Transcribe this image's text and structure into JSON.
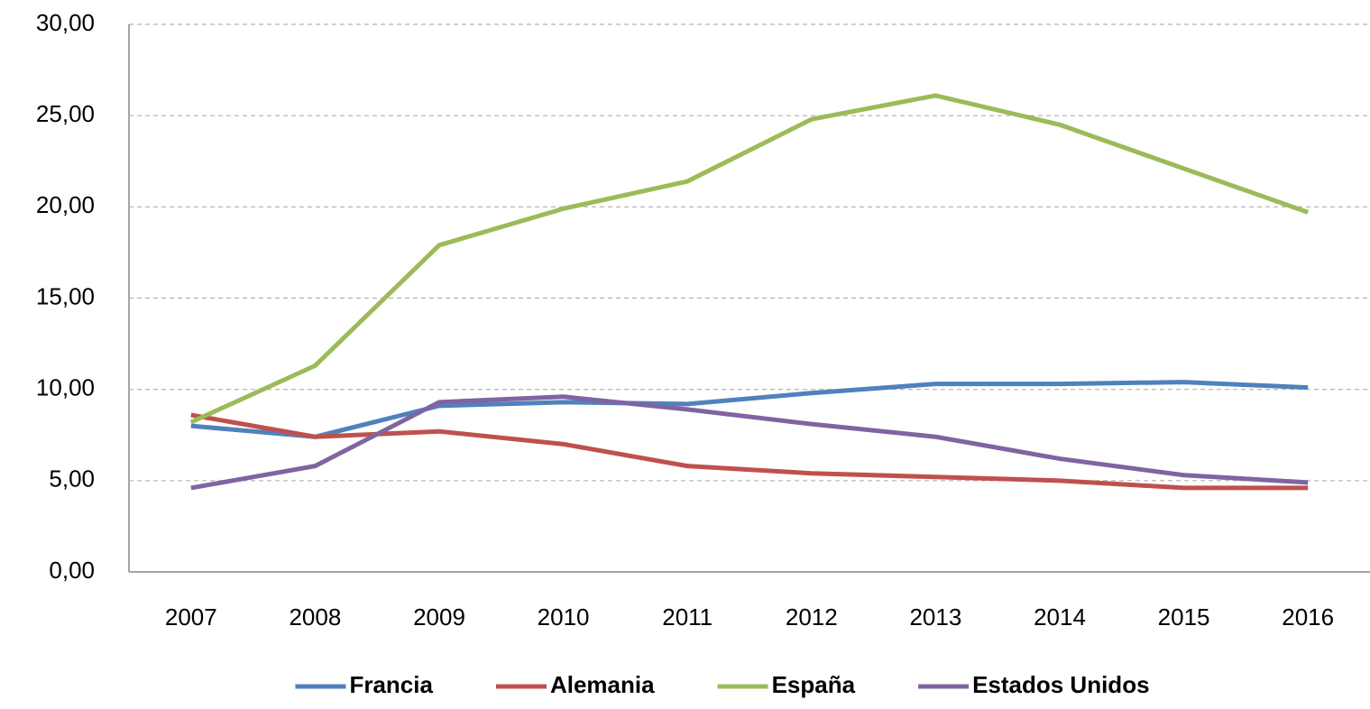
{
  "chart_data": {
    "type": "line",
    "categories": [
      "2007",
      "2008",
      "2009",
      "2010",
      "2011",
      "2012",
      "2013",
      "2014",
      "2015",
      "2016"
    ],
    "series": [
      {
        "name": "Francia",
        "color": "#4f81bd",
        "values": [
          8.0,
          7.4,
          9.1,
          9.3,
          9.2,
          9.8,
          10.3,
          10.3,
          10.4,
          10.1
        ]
      },
      {
        "name": "Alemania",
        "color": "#c0504d",
        "values": [
          8.6,
          7.4,
          7.7,
          7.0,
          5.8,
          5.4,
          5.2,
          5.0,
          4.6,
          4.6
        ]
      },
      {
        "name": "España",
        "color": "#9bbb59",
        "values": [
          8.2,
          11.3,
          17.9,
          19.9,
          21.4,
          24.8,
          26.1,
          24.5,
          22.1,
          19.7
        ]
      },
      {
        "name": "Estados Unidos",
        "color": "#8064a2",
        "values": [
          4.6,
          5.8,
          9.3,
          9.6,
          8.9,
          8.1,
          7.4,
          6.2,
          5.3,
          4.9
        ]
      }
    ],
    "ylim": [
      0,
      30
    ],
    "yticks": [
      {
        "value": 0,
        "label": "0,00"
      },
      {
        "value": 5,
        "label": "5,00"
      },
      {
        "value": 10,
        "label": "10,00"
      },
      {
        "value": 15,
        "label": "15,00"
      },
      {
        "value": 20,
        "label": "20,00"
      },
      {
        "value": 25,
        "label": "25,00"
      },
      {
        "value": 30,
        "label": "30,00"
      }
    ],
    "grid": true,
    "legend": "bottom"
  }
}
